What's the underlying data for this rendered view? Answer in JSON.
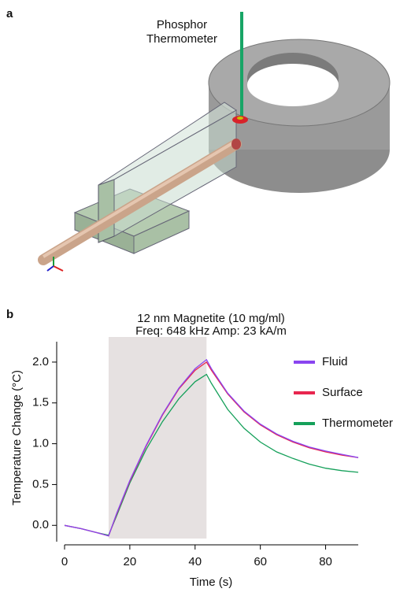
{
  "panel_a": {
    "label": "a",
    "annotation_lines": [
      "Phosphor",
      "Thermometer"
    ]
  },
  "panel_b": {
    "label": "b"
  },
  "chart_data": {
    "type": "line",
    "title": "12 nm Magnetite (10 mg/ml)",
    "subtitle": "Freq: 648 kHz Amp: 23 kA/m",
    "x_label": "Time (s)",
    "y_label": "Temperature Change (°C)",
    "x": [
      0,
      5,
      10,
      13.5,
      16,
      20,
      25,
      30,
      35,
      40,
      43.5,
      45,
      50,
      55,
      60,
      65,
      70,
      75,
      80,
      85,
      90
    ],
    "series": [
      {
        "name": "Fluid",
        "color": "#8a45f0",
        "values": [
          0,
          -0.04,
          -0.09,
          -0.13,
          0.15,
          0.55,
          0.98,
          1.36,
          1.68,
          1.92,
          2.03,
          1.92,
          1.62,
          1.4,
          1.24,
          1.12,
          1.03,
          0.96,
          0.91,
          0.87,
          0.83
        ]
      },
      {
        "name": "Surface",
        "color": "#e8264f",
        "values": [
          0,
          -0.04,
          -0.09,
          -0.13,
          0.14,
          0.54,
          0.97,
          1.35,
          1.67,
          1.9,
          2.0,
          1.9,
          1.61,
          1.39,
          1.23,
          1.11,
          1.02,
          0.95,
          0.9,
          0.86,
          0.83
        ]
      },
      {
        "name": "Thermometer",
        "color": "#15a05a",
        "values": [
          0,
          -0.04,
          -0.09,
          -0.12,
          0.12,
          0.52,
          0.93,
          1.27,
          1.55,
          1.76,
          1.85,
          1.74,
          1.42,
          1.19,
          1.02,
          0.9,
          0.82,
          0.75,
          0.7,
          0.67,
          0.65
        ]
      }
    ],
    "shaded_region": [
      13.5,
      43.5
    ],
    "shaded_color": "#e6e1e1",
    "xlim": [
      0,
      90
    ],
    "xticks": [
      0,
      20,
      40,
      60,
      80
    ],
    "ylim": [
      -0.2,
      2.25
    ],
    "yticks": [
      {
        "value": 0,
        "label": "0.0"
      },
      0.5,
      {
        "value": 1,
        "label": "1.0"
      },
      1.5,
      {
        "value": 2,
        "label": "2.0"
      }
    ],
    "legend": "upper right"
  }
}
